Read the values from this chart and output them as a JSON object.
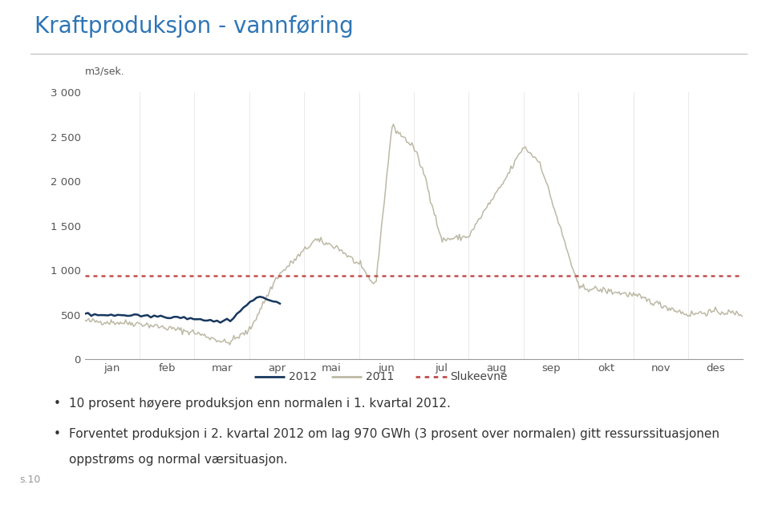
{
  "title": "Kraftproduksjon - vannføring",
  "title_color": "#2E75B6",
  "ylabel": "m3/sek.",
  "ylim": [
    0,
    3000
  ],
  "yticks": [
    0,
    500,
    1000,
    1500,
    2000,
    2500,
    3000
  ],
  "ytick_labels": [
    "0",
    "500",
    "1 000",
    "1 500",
    "2 000",
    "2 500",
    "3 000"
  ],
  "months": [
    "jan",
    "feb",
    "mar",
    "apr",
    "mai",
    "jun",
    "jul",
    "aug",
    "sep",
    "okt",
    "nov",
    "des"
  ],
  "slukeevne_value": 940,
  "slukeevne_color": "#C0504D",
  "line_2012_color": "#17375E",
  "line_2011_color": "#BDB9A6",
  "background_color": "#FFFFFF",
  "bullet1": "10 prosent høyere produksjon enn normalen i 1. kvartal 2012.",
  "bullet2": "Forventet produksjon i 2. kvartal 2012 om lag 970 GWh (3 prosent over normalen) gitt ressurssituasjonen",
  "bullet2b": "oppstrøms og normal værsituasjon.",
  "page": "s.10",
  "legend_2012": "2012",
  "legend_2011": "2011",
  "legend_slukeevne": "Slukeevne"
}
